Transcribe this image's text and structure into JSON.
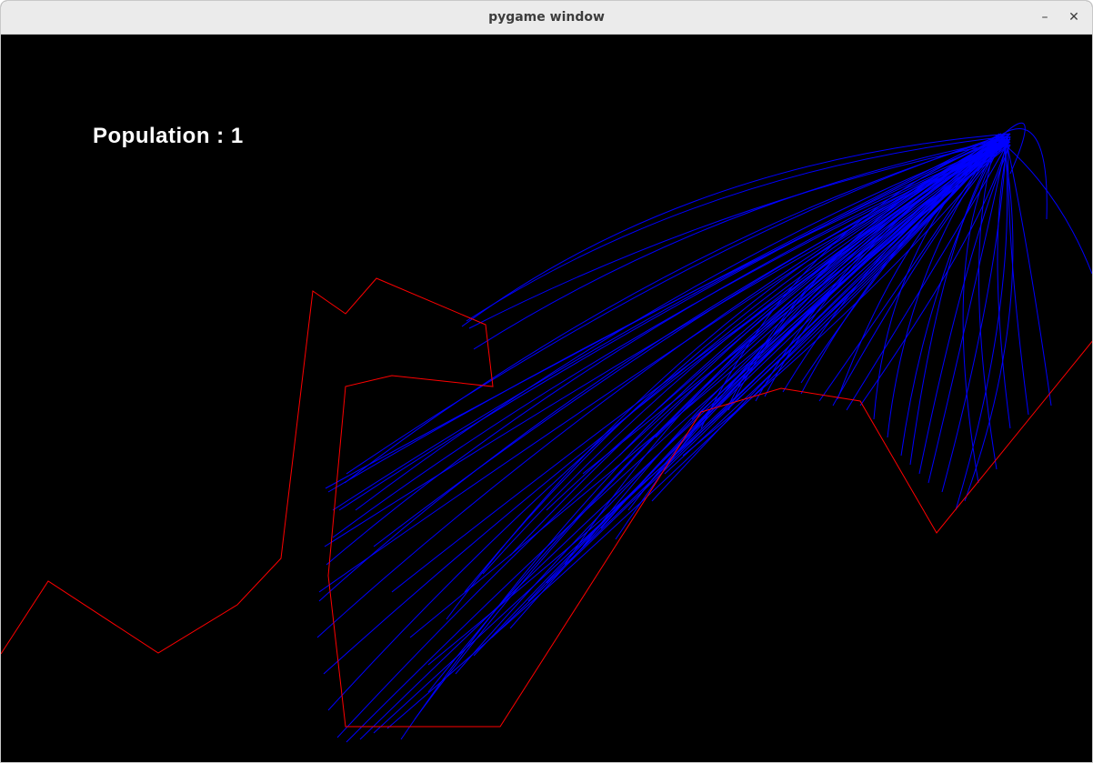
{
  "window": {
    "title": "pygame window",
    "minimize_glyph": "–",
    "close_glyph": "✕"
  },
  "hud": {
    "population_label": "Population : 1"
  },
  "colors": {
    "background": "#000000",
    "track": "#ff0000",
    "paths": "#0000ff",
    "text": "#ffffff"
  }
}
